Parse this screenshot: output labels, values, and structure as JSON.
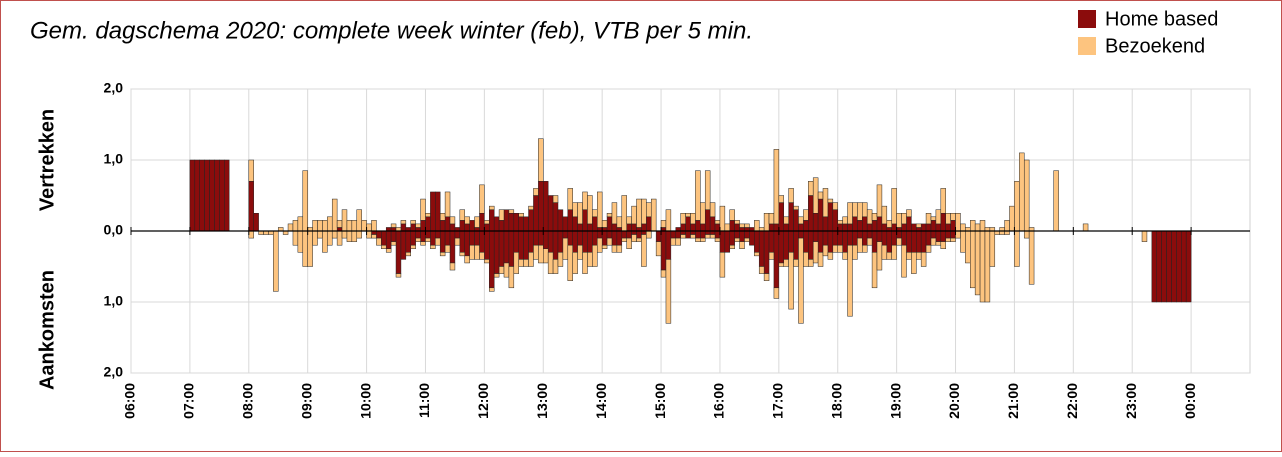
{
  "chart_data": {
    "type": "bar",
    "stacked": true,
    "title": "Gem. dagschema 2020: complete week winter (feb), VTB per 5 min.",
    "ylabel_top": "Vertrekken",
    "ylabel_bottom": "Aankomsten",
    "legend": "top-right",
    "grid": true,
    "xlim": [
      360,
      1500
    ],
    "xticks": [
      {
        "value": 360,
        "label": "06:00"
      },
      {
        "value": 420,
        "label": "07:00"
      },
      {
        "value": 480,
        "label": "08:00"
      },
      {
        "value": 540,
        "label": "09:00"
      },
      {
        "value": 600,
        "label": "10:00"
      },
      {
        "value": 660,
        "label": "11:00"
      },
      {
        "value": 720,
        "label": "12:00"
      },
      {
        "value": 780,
        "label": "13:00"
      },
      {
        "value": 840,
        "label": "14:00"
      },
      {
        "value": 900,
        "label": "15:00"
      },
      {
        "value": 960,
        "label": "16:00"
      },
      {
        "value": 1020,
        "label": "17:00"
      },
      {
        "value": 1080,
        "label": "18:00"
      },
      {
        "value": 1140,
        "label": "19:00"
      },
      {
        "value": 1200,
        "label": "20:00"
      },
      {
        "value": 1260,
        "label": "21:00"
      },
      {
        "value": 1320,
        "label": "22:00"
      },
      {
        "value": 1380,
        "label": "23:00"
      },
      {
        "value": 1440,
        "label": "00:00"
      }
    ],
    "ylim": [
      -2,
      2
    ],
    "yticks": [
      {
        "value": 2,
        "label": "2,0"
      },
      {
        "value": 1,
        "label": "1,0"
      },
      {
        "value": 0,
        "label": "0,0"
      },
      {
        "value": -1,
        "label": "1,0"
      },
      {
        "value": -2,
        "label": "2,0"
      }
    ],
    "x": [
      420,
      425,
      430,
      435,
      440,
      445,
      450,
      455,
      460,
      465,
      470,
      475,
      480,
      485,
      490,
      495,
      500,
      505,
      510,
      515,
      520,
      525,
      530,
      535,
      540,
      545,
      550,
      555,
      560,
      565,
      570,
      575,
      580,
      585,
      590,
      595,
      600,
      605,
      610,
      615,
      620,
      625,
      630,
      635,
      640,
      645,
      650,
      655,
      660,
      665,
      670,
      675,
      680,
      685,
      690,
      695,
      700,
      705,
      710,
      715,
      720,
      725,
      730,
      735,
      740,
      745,
      750,
      755,
      760,
      765,
      770,
      775,
      780,
      785,
      790,
      795,
      800,
      805,
      810,
      815,
      820,
      825,
      830,
      835,
      840,
      845,
      850,
      855,
      860,
      865,
      870,
      875,
      880,
      885,
      890,
      895,
      900,
      905,
      910,
      915,
      920,
      925,
      930,
      935,
      940,
      945,
      950,
      955,
      960,
      965,
      970,
      975,
      980,
      985,
      990,
      995,
      1000,
      1005,
      1010,
      1015,
      1020,
      1025,
      1030,
      1035,
      1040,
      1045,
      1050,
      1055,
      1060,
      1065,
      1070,
      1075,
      1080,
      1085,
      1090,
      1095,
      1100,
      1105,
      1110,
      1115,
      1120,
      1125,
      1130,
      1135,
      1140,
      1145,
      1150,
      1155,
      1160,
      1165,
      1170,
      1175,
      1180,
      1185,
      1190,
      1195,
      1200,
      1205,
      1210,
      1215,
      1220,
      1225,
      1230,
      1235,
      1240,
      1245,
      1250,
      1255,
      1260,
      1265,
      1270,
      1275,
      1280,
      1285,
      1290,
      1295,
      1300,
      1305,
      1310,
      1315,
      1320,
      1325,
      1330,
      1335,
      1340,
      1345,
      1350,
      1355,
      1360,
      1365,
      1370,
      1375,
      1380,
      1385,
      1390,
      1395,
      1400,
      1405,
      1410,
      1415,
      1420,
      1425,
      1430,
      1435
    ],
    "series": [
      {
        "name": "Home based",
        "color": "#8b0c0c",
        "departures": [
          1,
          1,
          1,
          1,
          1,
          1,
          1,
          1,
          0,
          0,
          0,
          0,
          0.7,
          0.25,
          0,
          0,
          0,
          0,
          0,
          0,
          0,
          0,
          0,
          0,
          0,
          0,
          0,
          0,
          0,
          0,
          0.05,
          0,
          0,
          0,
          0,
          0,
          0,
          0,
          0,
          0,
          0.05,
          0.05,
          0,
          0.1,
          0.05,
          0.1,
          0.05,
          0.15,
          0.2,
          0.55,
          0.55,
          0.15,
          0.2,
          0.1,
          0.05,
          0.15,
          0.1,
          0.15,
          0.05,
          0.25,
          0.1,
          0.3,
          0.2,
          0.15,
          0.3,
          0.25,
          0.25,
          0.2,
          0.2,
          0.3,
          0.5,
          0.7,
          0.7,
          0.5,
          0.4,
          0.3,
          0.2,
          0.3,
          0.2,
          0.1,
          0.3,
          0.1,
          0.2,
          0.05,
          0.05,
          0.2,
          0.1,
          0.05,
          0,
          0.1,
          0.1,
          0.05,
          0.1,
          0.2,
          0,
          0,
          0.05,
          0,
          0,
          0.05,
          0.1,
          0.2,
          0.1,
          0.15,
          0.1,
          0.3,
          0.2,
          0.1,
          0,
          0,
          0.15,
          0.1,
          0.05,
          0.05,
          0.05,
          0,
          0,
          0,
          0.1,
          0.1,
          0.4,
          0.1,
          0.4,
          0.3,
          0.1,
          0.15,
          0.5,
          0.25,
          0.45,
          0.2,
          0.4,
          0.3,
          0.1,
          0.1,
          0.1,
          0.2,
          0.15,
          0.2,
          0.1,
          0.15,
          0.2,
          0.1,
          0.05,
          0.1,
          0.05,
          0.1,
          0.2,
          0.1,
          0.05,
          0.1,
          0.1,
          0.15,
          0.1,
          0.25,
          0.1,
          0.15,
          0,
          0,
          0,
          0,
          0,
          0,
          0,
          0,
          0,
          0,
          0,
          0,
          0,
          0,
          0,
          0,
          0,
          0,
          0,
          0,
          0,
          0,
          0,
          0,
          0,
          0,
          0,
          0,
          0,
          0,
          0,
          0,
          0,
          0,
          0,
          0,
          0,
          0,
          0,
          0,
          0,
          0,
          0,
          0,
          0,
          0,
          0,
          0
        ],
        "arrivals": [
          0,
          0,
          0,
          0,
          0,
          0,
          0,
          0,
          0,
          0,
          0,
          0,
          0,
          0,
          0,
          0,
          0,
          0,
          0,
          0,
          0,
          0,
          0,
          0,
          0,
          0,
          0,
          0,
          0,
          0,
          0,
          0,
          0,
          0,
          0,
          0,
          0,
          -0.05,
          -0.1,
          -0.2,
          -0.25,
          -0.15,
          -0.6,
          -0.4,
          -0.3,
          -0.2,
          -0.1,
          -0.15,
          -0.1,
          -0.2,
          -0.1,
          -0.3,
          -0.2,
          -0.45,
          -0.1,
          -0.3,
          -0.35,
          -0.2,
          -0.2,
          -0.3,
          -0.4,
          -0.8,
          -0.6,
          -0.5,
          -0.45,
          -0.5,
          -0.3,
          -0.4,
          -0.4,
          -0.3,
          -0.2,
          -0.2,
          -0.25,
          -0.3,
          -0.4,
          -0.3,
          -0.1,
          -0.2,
          -0.3,
          -0.2,
          -0.3,
          -0.3,
          -0.2,
          -0.1,
          -0.2,
          -0.1,
          -0.2,
          -0.2,
          -0.1,
          -0.1,
          -0.05,
          -0.1,
          -0.05,
          0,
          0,
          -0.15,
          -0.55,
          -0.4,
          -0.1,
          -0.1,
          -0.05,
          -0.1,
          -0.05,
          -0.1,
          -0.1,
          -0.05,
          -0.05,
          -0.1,
          -0.3,
          -0.3,
          -0.2,
          -0.1,
          -0.15,
          -0.1,
          -0.2,
          -0.3,
          -0.5,
          -0.6,
          -0.3,
          -0.8,
          -0.45,
          -0.4,
          -0.3,
          -0.4,
          -0.1,
          -0.3,
          -0.4,
          -0.15,
          -0.3,
          -0.2,
          -0.3,
          -0.2,
          -0.2,
          -0.3,
          -0.2,
          -0.2,
          -0.1,
          -0.2,
          -0.1,
          -0.3,
          -0.15,
          -0.2,
          -0.3,
          -0.2,
          -0.1,
          -0.2,
          -0.3,
          -0.3,
          -0.3,
          -0.3,
          -0.2,
          -0.1,
          -0.15,
          -0.15,
          -0.1,
          -0.1,
          0,
          0,
          0,
          0,
          0,
          0,
          0,
          0,
          0,
          0,
          0,
          0,
          0,
          0,
          0,
          0,
          0,
          0,
          0,
          0,
          0,
          0,
          0,
          0,
          0,
          0,
          0,
          0,
          0,
          0,
          0,
          0,
          0,
          0,
          0,
          0,
          0,
          0,
          0,
          0,
          -1,
          -1,
          -1,
          -1,
          -1,
          -1,
          -1,
          -1
        ]
      },
      {
        "name": "Bezoekend",
        "color": "#fdc47f",
        "departures": [
          0,
          0,
          0,
          0,
          0,
          0,
          0,
          0,
          0,
          0,
          0,
          0,
          0.3,
          0,
          0,
          0,
          0,
          0,
          0.05,
          0,
          0.1,
          0.15,
          0.2,
          0.85,
          0.05,
          0.15,
          0.15,
          0.15,
          0.2,
          0.45,
          0.1,
          0.3,
          0.15,
          0.15,
          0.3,
          0.15,
          0.1,
          0.15,
          0,
          0,
          0,
          0.05,
          0.05,
          0.05,
          0,
          0.05,
          0.05,
          0.3,
          0.05,
          0,
          0,
          0.1,
          0.35,
          0.1,
          0,
          0.15,
          0.1,
          0,
          0.15,
          0.4,
          0.05,
          0.05,
          0,
          0.15,
          0,
          0.05,
          0,
          0.05,
          0,
          0.05,
          0.1,
          0.6,
          0,
          0,
          0.1,
          0,
          0,
          0.3,
          0.2,
          0.3,
          0.25,
          0.4,
          0.1,
          0.5,
          0.1,
          0.05,
          0.3,
          0.15,
          0.5,
          0.1,
          0.25,
          0.4,
          0.35,
          0.2,
          0.45,
          0,
          0.1,
          0.3,
          0,
          0,
          0.15,
          0.05,
          0.15,
          0.7,
          0.3,
          0.55,
          0.2,
          0.05,
          0.35,
          0.1,
          0.15,
          0.05,
          0.05,
          0.05,
          0,
          0.15,
          0.05,
          0.25,
          0.15,
          1.05,
          0.1,
          0.1,
          0.2,
          0.05,
          0.1,
          0.15,
          0.2,
          0.5,
          0.1,
          0.4,
          0.05,
          0.1,
          0.05,
          0.1,
          0.3,
          0.2,
          0.25,
          0.2,
          0.2,
          0.1,
          0.45,
          0.25,
          0.1,
          0.5,
          0.2,
          0.15,
          0.1,
          0,
          0.05,
          0,
          0.15,
          0.05,
          0.2,
          0.35,
          0.15,
          0.1,
          0.25,
          0.1,
          0.05,
          0.15,
          0.1,
          0.15,
          0.05,
          0.05,
          0,
          0.05,
          0.15,
          0.35,
          0.7,
          1.1,
          1,
          0.05,
          0,
          0,
          0,
          0,
          0.85,
          0,
          0,
          0,
          0,
          0,
          0.1,
          0,
          0,
          0,
          0,
          0,
          0,
          0,
          0,
          0,
          0,
          0,
          0,
          0,
          0,
          0,
          0,
          0,
          0,
          0,
          0,
          0
        ],
        "arrivals": [
          0,
          0,
          0,
          0,
          0,
          0,
          0,
          0,
          0,
          0,
          0,
          0,
          -0.1,
          0,
          -0.05,
          -0.05,
          -0.05,
          -0.85,
          0,
          -0.05,
          0,
          -0.2,
          -0.3,
          -0.5,
          -0.5,
          -0.2,
          -0.1,
          -0.3,
          -0.2,
          -0.1,
          -0.2,
          -0.1,
          -0.15,
          -0.15,
          -0.1,
          0,
          -0.1,
          -0.05,
          -0.1,
          -0.05,
          -0.05,
          -0.05,
          -0.05,
          0,
          -0.05,
          -0.05,
          -0.05,
          -0.05,
          -0.05,
          -0.05,
          -0.1,
          -0.05,
          -0.1,
          -0.1,
          -0.1,
          -0.05,
          -0.1,
          -0.2,
          -0.2,
          -0.1,
          -0.05,
          -0.05,
          -0.05,
          -0.1,
          -0.2,
          -0.3,
          -0.3,
          -0.1,
          -0.1,
          -0.2,
          -0.2,
          -0.25,
          -0.2,
          -0.3,
          -0.2,
          -0.2,
          -0.3,
          -0.5,
          -0.3,
          -0.2,
          -0.3,
          -0.2,
          -0.3,
          -0.2,
          -0.05,
          -0.1,
          -0.1,
          -0.1,
          -0.05,
          -0.15,
          -0.1,
          -0.05,
          -0.45,
          -0.1,
          0,
          -0.2,
          -0.1,
          -0.9,
          -0.1,
          -0.1,
          -0.05,
          0,
          -0.05,
          -0.05,
          -0.05,
          -0.05,
          -0.05,
          -0.05,
          -0.35,
          0,
          -0.05,
          -0.05,
          -0.1,
          -0.05,
          0,
          -0.05,
          -0.1,
          -0.1,
          -0.1,
          -0.15,
          -0.05,
          -0.1,
          -0.8,
          -0.1,
          -1.2,
          -0.2,
          -0.1,
          -0.3,
          -0.2,
          -0.15,
          -0.1,
          -0.1,
          -0.1,
          -0.1,
          -1,
          -0.2,
          -0.2,
          -0.1,
          -0.1,
          -0.5,
          -0.4,
          -0.2,
          -0.1,
          -0.2,
          -0.1,
          -0.45,
          -0.1,
          -0.3,
          -0.1,
          -0.2,
          -0.1,
          -0.1,
          -0.05,
          -0.1,
          -0.05,
          -0.05,
          -0.1,
          -0.3,
          -0.45,
          -0.8,
          -0.9,
          -1,
          -1,
          -0.5,
          -0.05,
          -0.05,
          -0.05,
          0,
          -0.5,
          0,
          -0.1,
          -0.75,
          0,
          0,
          0,
          0,
          0,
          0,
          0,
          0,
          0,
          0,
          0,
          0,
          0,
          0,
          0,
          0,
          0,
          0,
          0,
          0,
          0,
          0,
          -0.15,
          0,
          0,
          0,
          0,
          0,
          0,
          0,
          0,
          0
        ]
      }
    ]
  }
}
